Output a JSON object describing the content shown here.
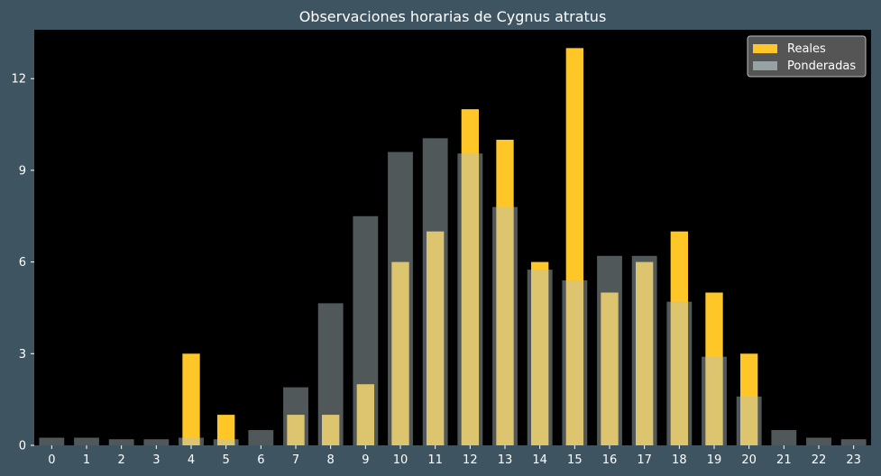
{
  "chart_data": {
    "type": "bar",
    "title": "Observaciones horarias de Cygnus atratus",
    "xlabel": "",
    "ylabel": "",
    "categories": [
      "0",
      "1",
      "2",
      "3",
      "4",
      "5",
      "6",
      "7",
      "8",
      "9",
      "10",
      "11",
      "12",
      "13",
      "14",
      "15",
      "16",
      "17",
      "18",
      "19",
      "20",
      "21",
      "22",
      "23"
    ],
    "series": [
      {
        "name": "Reales",
        "color": "#ffc627",
        "values": [
          0,
          0,
          0,
          0,
          3,
          1,
          0,
          1,
          1,
          2,
          6,
          7,
          11,
          10,
          6,
          13,
          5,
          6,
          7,
          5,
          3,
          0,
          0,
          0
        ]
      },
      {
        "name": "Ponderadas",
        "color": "#b4c3c8",
        "opacity": 0.45,
        "values": [
          0.25,
          0.25,
          0.2,
          0.2,
          0.25,
          0.2,
          0.5,
          1.9,
          4.65,
          7.5,
          9.6,
          10.05,
          9.55,
          7.8,
          5.75,
          5.4,
          6.2,
          6.2,
          4.7,
          2.9,
          1.6,
          0.5,
          0.25,
          0.2
        ]
      }
    ],
    "ylim": [
      0,
      13.6
    ],
    "yticks": [
      0,
      3,
      6,
      9,
      12
    ],
    "grid": false,
    "legend_position": "top-right",
    "background": "#000000",
    "figure_background": "#3e5461",
    "legend_background": "#555555"
  }
}
